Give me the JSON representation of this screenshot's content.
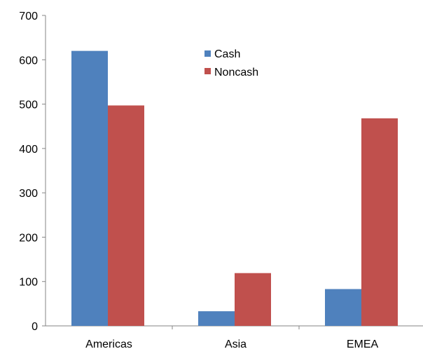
{
  "chart_data": {
    "type": "bar",
    "categories": [
      "Americas",
      "Asia",
      "EMEA"
    ],
    "series": [
      {
        "name": "Cash",
        "values": [
          620,
          33,
          83
        ],
        "color": "#4f81bd"
      },
      {
        "name": "Noncash",
        "values": [
          497,
          119,
          468
        ],
        "color": "#c0504d"
      }
    ],
    "ylim": [
      0,
      700
    ],
    "yticks": [
      0,
      100,
      200,
      300,
      400,
      500,
      600,
      700
    ],
    "grid": false,
    "legend": "top-center"
  }
}
